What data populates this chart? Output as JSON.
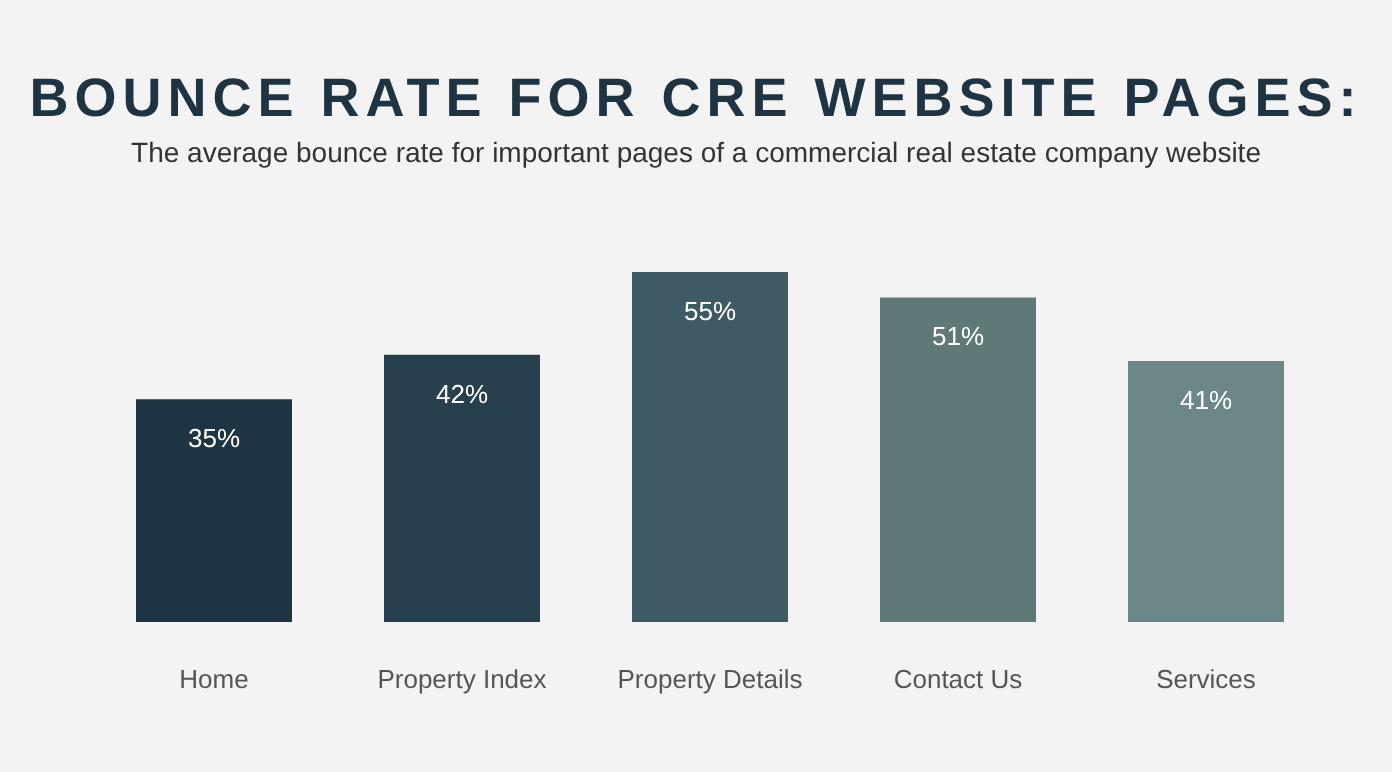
{
  "chart_data": {
    "type": "bar",
    "title": "BOUNCE RATE FOR CRE WEBSITE PAGES:",
    "subtitle": "The average bounce rate for important pages of a commercial real estate company website",
    "categories": [
      "Home",
      "Property Index",
      "Property Details",
      "Contact Us",
      "Services"
    ],
    "values": [
      35,
      42,
      55,
      51,
      41
    ],
    "colors": [
      "#1f3442",
      "#26404d",
      "#3e5a63",
      "#5f7878",
      "#6c8787"
    ],
    "value_labels": [
      "35%",
      "42%",
      "55%",
      "51%",
      "41%"
    ],
    "grid": false,
    "legend": false,
    "tick_labels": "x"
  }
}
